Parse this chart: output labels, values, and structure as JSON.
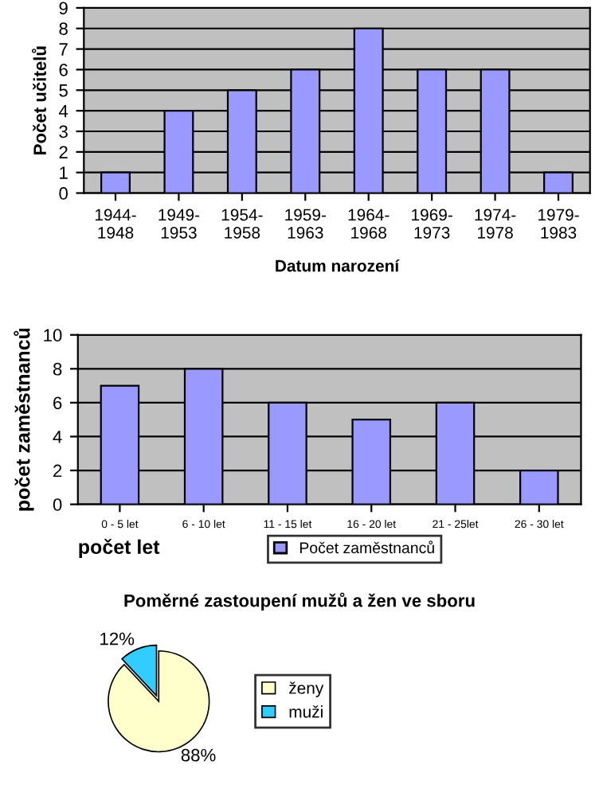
{
  "chart_data": [
    {
      "type": "bar",
      "xlabel": "Datum narození",
      "ylabel": "Počet učitelů",
      "categories": [
        "1944-\n1948",
        "1949-\n1953",
        "1954-\n1958",
        "1959-\n1963",
        "1964-\n1968",
        "1969-\n1973",
        "1974-\n1978",
        "1979-\n1983"
      ],
      "values": [
        1,
        4,
        5,
        6,
        8,
        6,
        6,
        1
      ],
      "color": "#9999ff",
      "ylim": [
        0,
        9
      ],
      "yticks": [
        0,
        1,
        2,
        3,
        4,
        5,
        6,
        7,
        8,
        9
      ],
      "grid": "y"
    },
    {
      "type": "bar",
      "xlabel": "počet let",
      "ylabel": "počet zaměstnanců",
      "categories": [
        "0 - 5 let",
        "6 - 10 let",
        "11 - 15 let",
        "16 - 20 let",
        "21 - 25let",
        "26 - 30 let"
      ],
      "series": [
        {
          "name": "Počet zaměstnanců",
          "color": "#9999ff",
          "values": [
            7,
            8,
            6,
            5,
            6,
            2
          ]
        }
      ],
      "ylim": [
        0,
        10
      ],
      "yticks": [
        0,
        2,
        4,
        6,
        8,
        10
      ],
      "grid": "y",
      "legend": "bottom"
    },
    {
      "type": "pie",
      "title": "Poměrné zastoupení mužů a žen ve sboru",
      "categories": [
        "ženy",
        "muži"
      ],
      "values": [
        88,
        12
      ],
      "colors": [
        "#ffffcc",
        "#33ccff"
      ],
      "value_labels": [
        "88%",
        "12%"
      ],
      "legend": "right"
    }
  ]
}
